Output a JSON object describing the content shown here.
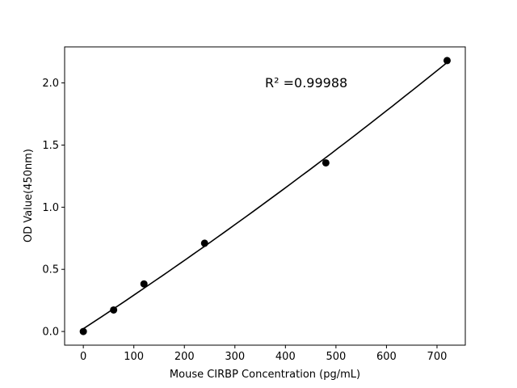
{
  "chart_data": {
    "type": "scatter",
    "title": "",
    "xlabel": "Mouse CIRBP Concentration (pg/mL)",
    "ylabel": "OD Value(450nm)",
    "xlim": [
      -37,
      756
    ],
    "ylim": [
      -0.11,
      2.29
    ],
    "xticks": [
      0,
      100,
      200,
      300,
      400,
      500,
      600,
      700
    ],
    "xtick_labels": [
      "0",
      "100",
      "200",
      "300",
      "400",
      "500",
      "600",
      "700"
    ],
    "yticks": [
      0.0,
      0.5,
      1.0,
      1.5,
      2.0
    ],
    "ytick_labels": [
      "0.0",
      "0.5",
      "1.0",
      "1.5",
      "2.0"
    ],
    "grid": false,
    "series": [
      {
        "x": [
          0,
          60,
          120,
          240,
          480,
          720
        ],
        "y": [
          0.0,
          0.173,
          0.383,
          0.71,
          1.357,
          2.18
        ],
        "color": "#000000",
        "fit": "polynomial"
      }
    ],
    "annotation": "R² =0.99988"
  }
}
